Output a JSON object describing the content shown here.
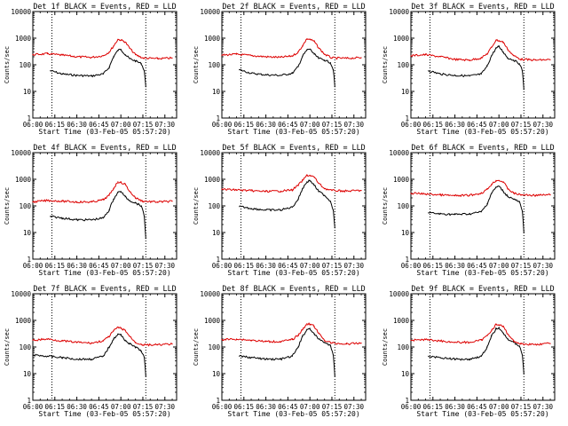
{
  "figure": {
    "title_template": "Det {n}f BLACK = Events, RED = LLD",
    "xlabel": "Start Time (03-Feb-05 05:57:20)",
    "ylabel": "Counts/sec",
    "colors": {
      "events": "#000000",
      "lld": "#dd0000",
      "axis": "#000000"
    }
  },
  "chart_data": [
    {
      "type": "line",
      "panel": 1,
      "title": "Det 1f BLACK = Events, RED = LLD",
      "xlabel": "Start Time (03-Feb-05 05:57:20)",
      "ylabel": "Counts/sec",
      "yscale": "log",
      "ylim": [
        1,
        10000
      ],
      "xlim": [
        "06:00",
        "07:38"
      ],
      "x_ticks": [
        "06:00",
        "06:15",
        "06:30",
        "06:45",
        "07:00",
        "07:15",
        "07:30"
      ],
      "y_ticks": [
        "1",
        "10",
        "100",
        "1000",
        "10000"
      ],
      "vlines": [
        "06:13",
        "07:17"
      ],
      "series": [
        {
          "name": "Events",
          "color": "#000000",
          "x": [
            "06:12",
            "06:20",
            "06:30",
            "06:40",
            "06:48",
            "06:52",
            "06:55",
            "06:58",
            "07:00",
            "07:03",
            "07:06",
            "07:10",
            "07:14",
            "07:16",
            "07:17"
          ],
          "values": [
            60,
            45,
            40,
            38,
            45,
            80,
            200,
            350,
            380,
            240,
            170,
            140,
            110,
            60,
            15
          ]
        },
        {
          "name": "LLD",
          "color": "#dd0000",
          "x": [
            "06:00",
            "06:10",
            "06:20",
            "06:30",
            "06:40",
            "06:48",
            "06:52",
            "06:55",
            "06:58",
            "07:00",
            "07:03",
            "07:06",
            "07:10",
            "07:15",
            "07:25",
            "07:35"
          ],
          "values": [
            240,
            260,
            230,
            200,
            190,
            220,
            300,
            500,
            900,
            850,
            720,
            420,
            240,
            180,
            170,
            180
          ]
        }
      ]
    },
    {
      "type": "line",
      "panel": 2,
      "title": "Det 2f BLACK = Events, RED = LLD",
      "xlabel": "Start Time (03-Feb-05 05:57:20)",
      "ylabel": "Counts/sec",
      "yscale": "log",
      "ylim": [
        1,
        10000
      ],
      "xlim": [
        "06:00",
        "07:38"
      ],
      "x_ticks": [
        "06:00",
        "06:15",
        "06:30",
        "06:45",
        "07:00",
        "07:15",
        "07:30"
      ],
      "y_ticks": [
        "1",
        "10",
        "100",
        "1000",
        "10000"
      ],
      "vlines": [
        "06:13",
        "07:17"
      ],
      "series": [
        {
          "name": "Events",
          "color": "#000000",
          "x": [
            "06:12",
            "06:20",
            "06:30",
            "06:40",
            "06:48",
            "06:52",
            "06:55",
            "06:58",
            "07:00",
            "07:03",
            "07:06",
            "07:10",
            "07:14",
            "07:16",
            "07:17"
          ],
          "values": [
            65,
            48,
            42,
            40,
            48,
            85,
            210,
            360,
            390,
            250,
            175,
            150,
            120,
            65,
            15
          ]
        },
        {
          "name": "LLD",
          "color": "#dd0000",
          "x": [
            "06:00",
            "06:10",
            "06:20",
            "06:30",
            "06:40",
            "06:48",
            "06:52",
            "06:55",
            "06:58",
            "07:00",
            "07:03",
            "07:06",
            "07:10",
            "07:15",
            "07:25",
            "07:35"
          ],
          "values": [
            230,
            250,
            220,
            200,
            190,
            215,
            300,
            520,
            950,
            900,
            750,
            430,
            250,
            180,
            175,
            185
          ]
        }
      ]
    },
    {
      "type": "line",
      "panel": 3,
      "title": "Det 3f BLACK = Events, RED = LLD",
      "xlabel": "Start Time (03-Feb-05 05:57:20)",
      "ylabel": "Counts/sec",
      "yscale": "log",
      "ylim": [
        1,
        10000
      ],
      "xlim": [
        "06:00",
        "07:38"
      ],
      "x_ticks": [
        "06:00",
        "06:15",
        "06:30",
        "06:45",
        "07:00",
        "07:15",
        "07:30"
      ],
      "y_ticks": [
        "1",
        "10",
        "100",
        "1000",
        "10000"
      ],
      "vlines": [
        "06:13",
        "07:17"
      ],
      "series": [
        {
          "name": "Events",
          "color": "#000000",
          "x": [
            "06:12",
            "06:20",
            "06:30",
            "06:40",
            "06:48",
            "06:52",
            "06:55",
            "06:58",
            "07:00",
            "07:03",
            "07:06",
            "07:10",
            "07:14",
            "07:16",
            "07:17"
          ],
          "values": [
            60,
            45,
            40,
            38,
            45,
            90,
            220,
            420,
            480,
            300,
            180,
            150,
            110,
            60,
            12
          ]
        },
        {
          "name": "LLD",
          "color": "#dd0000",
          "x": [
            "06:00",
            "06:10",
            "06:20",
            "06:30",
            "06:40",
            "06:48",
            "06:52",
            "06:55",
            "06:58",
            "07:00",
            "07:03",
            "07:06",
            "07:10",
            "07:15",
            "07:25",
            "07:35"
          ],
          "values": [
            220,
            240,
            200,
            160,
            150,
            180,
            260,
            450,
            850,
            800,
            700,
            380,
            220,
            160,
            150,
            155
          ]
        }
      ]
    },
    {
      "type": "line",
      "panel": 4,
      "title": "Det 4f BLACK = Events, RED = LLD",
      "xlabel": "Start Time (03-Feb-05 05:57:20)",
      "ylabel": "Counts/sec",
      "yscale": "log",
      "ylim": [
        1,
        10000
      ],
      "xlim": [
        "06:00",
        "07:38"
      ],
      "x_ticks": [
        "06:00",
        "06:15",
        "06:30",
        "06:45",
        "07:00",
        "07:15",
        "07:30"
      ],
      "y_ticks": [
        "1",
        "10",
        "100",
        "1000",
        "10000"
      ],
      "vlines": [
        "06:13",
        "07:17"
      ],
      "series": [
        {
          "name": "Events",
          "color": "#000000",
          "x": [
            "06:12",
            "06:20",
            "06:30",
            "06:40",
            "06:48",
            "06:52",
            "06:55",
            "06:58",
            "07:00",
            "07:03",
            "07:06",
            "07:10",
            "07:14",
            "07:16",
            "07:17"
          ],
          "values": [
            40,
            35,
            30,
            30,
            35,
            70,
            180,
            320,
            350,
            220,
            160,
            130,
            100,
            40,
            6
          ]
        },
        {
          "name": "LLD",
          "color": "#dd0000",
          "x": [
            "06:00",
            "06:10",
            "06:20",
            "06:30",
            "06:40",
            "06:48",
            "06:52",
            "06:55",
            "06:58",
            "07:00",
            "07:03",
            "07:06",
            "07:10",
            "07:15",
            "07:25",
            "07:35"
          ],
          "values": [
            140,
            160,
            150,
            140,
            140,
            170,
            250,
            450,
            800,
            750,
            650,
            350,
            200,
            150,
            140,
            150
          ]
        }
      ]
    },
    {
      "type": "line",
      "panel": 5,
      "title": "Det 5f BLACK = Events, RED = LLD",
      "xlabel": "Start Time (03-Feb-05 05:57:20)",
      "ylabel": "Counts/sec",
      "yscale": "log",
      "ylim": [
        1,
        10000
      ],
      "xlim": [
        "06:00",
        "07:38"
      ],
      "x_ticks": [
        "06:00",
        "06:15",
        "06:30",
        "06:45",
        "07:00",
        "07:15",
        "07:30"
      ],
      "y_ticks": [
        "1",
        "10",
        "100",
        "1000",
        "10000"
      ],
      "vlines": [
        "06:13",
        "07:17"
      ],
      "series": [
        {
          "name": "Events",
          "color": "#000000",
          "x": [
            "06:12",
            "06:20",
            "06:30",
            "06:40",
            "06:48",
            "06:52",
            "06:55",
            "06:58",
            "07:00",
            "07:03",
            "07:06",
            "07:10",
            "07:14",
            "07:16",
            "07:17"
          ],
          "values": [
            95,
            80,
            70,
            70,
            90,
            180,
            450,
            800,
            900,
            600,
            350,
            250,
            150,
            70,
            15
          ]
        },
        {
          "name": "LLD",
          "color": "#dd0000",
          "x": [
            "06:00",
            "06:10",
            "06:20",
            "06:30",
            "06:40",
            "06:48",
            "06:52",
            "06:55",
            "06:58",
            "07:00",
            "07:03",
            "07:06",
            "07:10",
            "07:15",
            "07:25",
            "07:35"
          ],
          "values": [
            420,
            400,
            370,
            350,
            360,
            400,
            600,
            900,
            1400,
            1400,
            1200,
            700,
            450,
            380,
            360,
            380
          ]
        }
      ]
    },
    {
      "type": "line",
      "panel": 6,
      "title": "Det 6f BLACK = Events, RED = LLD",
      "xlabel": "Start Time (03-Feb-05 05:57:20)",
      "ylabel": "Counts/sec",
      "yscale": "log",
      "ylim": [
        1,
        10000
      ],
      "xlim": [
        "06:00",
        "07:38"
      ],
      "x_ticks": [
        "06:00",
        "06:15",
        "06:30",
        "06:45",
        "07:00",
        "07:15",
        "07:30"
      ],
      "y_ticks": [
        "1",
        "10",
        "100",
        "1000",
        "10000"
      ],
      "vlines": [
        "06:13",
        "07:17"
      ],
      "series": [
        {
          "name": "Events",
          "color": "#000000",
          "x": [
            "06:12",
            "06:20",
            "06:30",
            "06:40",
            "06:48",
            "06:52",
            "06:55",
            "06:58",
            "07:00",
            "07:03",
            "07:06",
            "07:10",
            "07:14",
            "07:16",
            "07:17"
          ],
          "values": [
            55,
            50,
            48,
            50,
            60,
            120,
            300,
            500,
            550,
            350,
            230,
            180,
            140,
            60,
            10
          ]
        },
        {
          "name": "LLD",
          "color": "#dd0000",
          "x": [
            "06:00",
            "06:10",
            "06:20",
            "06:30",
            "06:40",
            "06:48",
            "06:52",
            "06:55",
            "06:58",
            "07:00",
            "07:03",
            "07:06",
            "07:10",
            "07:15",
            "07:25",
            "07:35"
          ],
          "values": [
            300,
            280,
            260,
            240,
            250,
            300,
            420,
            650,
            900,
            900,
            800,
            450,
            300,
            260,
            250,
            260
          ]
        }
      ]
    },
    {
      "type": "line",
      "panel": 7,
      "title": "Det 7f BLACK = Events, RED = LLD",
      "xlabel": "Start Time (03-Feb-05 05:57:20)",
      "ylabel": "Counts/sec",
      "yscale": "log",
      "ylim": [
        1,
        10000
      ],
      "xlim": [
        "06:00",
        "07:38"
      ],
      "x_ticks": [
        "06:00",
        "06:15",
        "06:30",
        "06:45",
        "07:00",
        "07:15",
        "07:30"
      ],
      "y_ticks": [
        "1",
        "10",
        "100",
        "1000",
        "10000"
      ],
      "vlines": [
        "06:13",
        "07:17"
      ],
      "series": [
        {
          "name": "Events",
          "color": "#000000",
          "x": [
            "06:00",
            "06:10",
            "06:20",
            "06:30",
            "06:40",
            "06:48",
            "06:52",
            "06:55",
            "06:58",
            "07:00",
            "07:03",
            "07:06",
            "07:10",
            "07:14",
            "07:16",
            "07:17"
          ],
          "values": [
            50,
            45,
            40,
            35,
            35,
            45,
            100,
            200,
            300,
            280,
            180,
            130,
            100,
            70,
            40,
            8
          ]
        },
        {
          "name": "LLD",
          "color": "#dd0000",
          "x": [
            "06:00",
            "06:10",
            "06:20",
            "06:30",
            "06:40",
            "06:48",
            "06:52",
            "06:55",
            "06:58",
            "07:00",
            "07:03",
            "07:06",
            "07:10",
            "07:15",
            "07:25",
            "07:35"
          ],
          "values": [
            180,
            200,
            170,
            150,
            140,
            170,
            250,
            400,
            550,
            500,
            420,
            250,
            150,
            120,
            120,
            130
          ]
        }
      ]
    },
    {
      "type": "line",
      "panel": 8,
      "title": "Det 8f BLACK = Events, RED = LLD",
      "xlabel": "Start Time (03-Feb-05 05:57:20)",
      "ylabel": "Counts/sec",
      "yscale": "log",
      "ylim": [
        1,
        10000
      ],
      "xlim": [
        "06:00",
        "07:38"
      ],
      "x_ticks": [
        "06:00",
        "06:15",
        "06:30",
        "06:45",
        "07:00",
        "07:15",
        "07:30"
      ],
      "y_ticks": [
        "1",
        "10",
        "100",
        "1000",
        "10000"
      ],
      "vlines": [
        "06:13",
        "07:17"
      ],
      "series": [
        {
          "name": "Events",
          "color": "#000000",
          "x": [
            "06:12",
            "06:20",
            "06:30",
            "06:40",
            "06:48",
            "06:52",
            "06:55",
            "06:58",
            "07:00",
            "07:03",
            "07:06",
            "07:10",
            "07:14",
            "07:16",
            "07:17"
          ],
          "values": [
            45,
            40,
            35,
            35,
            45,
            100,
            250,
            450,
            500,
            300,
            200,
            150,
            110,
            50,
            8
          ]
        },
        {
          "name": "LLD",
          "color": "#dd0000",
          "x": [
            "06:00",
            "06:10",
            "06:20",
            "06:30",
            "06:40",
            "06:48",
            "06:52",
            "06:55",
            "06:58",
            "07:00",
            "07:03",
            "07:06",
            "07:10",
            "07:15",
            "07:25",
            "07:35"
          ],
          "values": [
            190,
            200,
            180,
            160,
            160,
            190,
            280,
            450,
            750,
            720,
            600,
            320,
            180,
            140,
            130,
            140
          ]
        }
      ]
    },
    {
      "type": "line",
      "panel": 9,
      "title": "Det 9f BLACK = Events, RED = LLD",
      "xlabel": "Start Time (03-Feb-05 05:57:20)",
      "ylabel": "Counts/sec",
      "yscale": "log",
      "ylim": [
        1,
        10000
      ],
      "xlim": [
        "06:00",
        "07:38"
      ],
      "x_ticks": [
        "06:00",
        "06:15",
        "06:30",
        "06:45",
        "07:00",
        "07:15",
        "07:30"
      ],
      "y_ticks": [
        "1",
        "10",
        "100",
        "1000",
        "10000"
      ],
      "vlines": [
        "06:13",
        "07:17"
      ],
      "series": [
        {
          "name": "Events",
          "color": "#000000",
          "x": [
            "06:12",
            "06:20",
            "06:30",
            "06:40",
            "06:48",
            "06:52",
            "06:55",
            "06:58",
            "07:00",
            "07:03",
            "07:06",
            "07:10",
            "07:14",
            "07:16",
            "07:17"
          ],
          "values": [
            45,
            40,
            35,
            35,
            45,
            100,
            260,
            480,
            520,
            320,
            200,
            150,
            110,
            50,
            10
          ]
        },
        {
          "name": "LLD",
          "color": "#dd0000",
          "x": [
            "06:00",
            "06:10",
            "06:20",
            "06:30",
            "06:40",
            "06:48",
            "06:52",
            "06:55",
            "06:58",
            "07:00",
            "07:03",
            "07:06",
            "07:10",
            "07:15",
            "07:25",
            "07:35"
          ],
          "values": [
            180,
            190,
            170,
            150,
            150,
            180,
            270,
            430,
            700,
            680,
            580,
            310,
            170,
            130,
            125,
            135
          ]
        }
      ]
    }
  ]
}
